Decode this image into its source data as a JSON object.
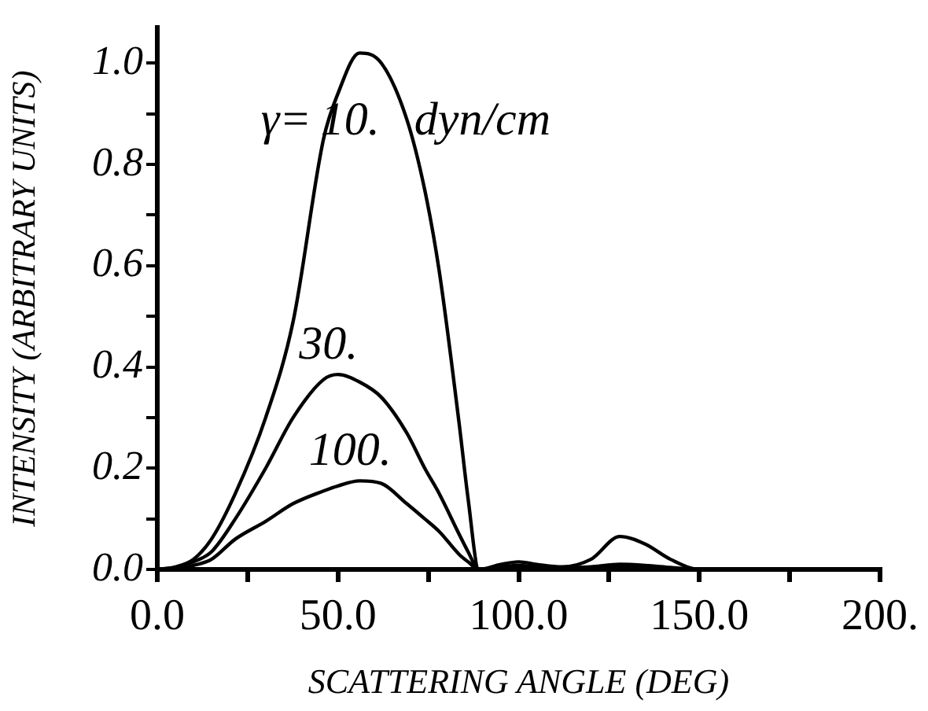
{
  "chart_data": {
    "type": "line",
    "xlabel": "SCATTERING ANGLE (DEG)",
    "ylabel": "INTENSITY (ARBITRARY UNITS)",
    "x": [
      0,
      5,
      10,
      15,
      21.6,
      30,
      37.6,
      46,
      50,
      56,
      62,
      69,
      74,
      78,
      83.5,
      86,
      89,
      95,
      100,
      105,
      112,
      120,
      128,
      135,
      142,
      150,
      160,
      200
    ],
    "series": [
      {
        "name": "10.",
        "color": "#000000",
        "values": [
          0,
          0.005,
          0.02,
          0.06,
          0.15,
          0.3,
          0.49,
          0.85,
          0.94,
          1.02,
          1.0,
          0.89,
          0.75,
          0.59,
          0.29,
          0.14,
          0,
          0.01,
          0.015,
          0.01,
          0.005,
          0.02,
          0.065,
          0.05,
          0.02,
          0,
          0,
          0
        ]
      },
      {
        "name": "30.",
        "color": "#000000",
        "values": [
          0,
          0.004,
          0.015,
          0.035,
          0.1,
          0.2,
          0.3,
          0.375,
          0.385,
          0.37,
          0.34,
          0.27,
          0.2,
          0.15,
          0.07,
          0.035,
          0,
          0.005,
          0.008,
          0.005,
          0.003,
          0.005,
          0.01,
          0.008,
          0.004,
          0,
          0,
          0
        ]
      },
      {
        "name": "100.",
        "color": "#000000",
        "values": [
          0,
          0.002,
          0.008,
          0.02,
          0.06,
          0.095,
          0.13,
          0.155,
          0.165,
          0.175,
          0.17,
          0.13,
          0.1,
          0.075,
          0.03,
          0.015,
          0,
          0.003,
          0.005,
          0.003,
          0.002,
          0.003,
          0.006,
          0.005,
          0.002,
          0,
          0,
          0
        ]
      }
    ],
    "annotations": [
      "γ=",
      "dyn/cm"
    ],
    "xlim": [
      0,
      200
    ],
    "xticks": [
      {
        "value": 0,
        "label": "0.0"
      },
      {
        "value": 25,
        "label": null
      },
      {
        "value": 50,
        "label": "50.0"
      },
      {
        "value": 75,
        "label": null
      },
      {
        "value": 100,
        "label": "100.0"
      },
      {
        "value": 125,
        "label": null
      },
      {
        "value": 150,
        "label": "150.0"
      },
      {
        "value": 175,
        "label": null
      },
      {
        "value": 200,
        "label": "200."
      }
    ],
    "ylim": [
      0,
      1.07
    ],
    "yticks": [
      {
        "value": 0,
        "label": "0.0"
      },
      {
        "value": 0.1,
        "label": null
      },
      {
        "value": 0.2,
        "label": "0.2"
      },
      {
        "value": 0.3,
        "label": null
      },
      {
        "value": 0.4,
        "label": "0.4"
      },
      {
        "value": 0.5,
        "label": null
      },
      {
        "value": 0.6,
        "label": "0.6"
      },
      {
        "value": 0.7,
        "label": null
      },
      {
        "value": 0.8,
        "label": "0.8"
      },
      {
        "value": 0.9,
        "label": null
      },
      {
        "value": 1,
        "label": "1.0"
      }
    ],
    "grid": false,
    "legend": false,
    "marker": "none",
    "line_style": "solid"
  }
}
